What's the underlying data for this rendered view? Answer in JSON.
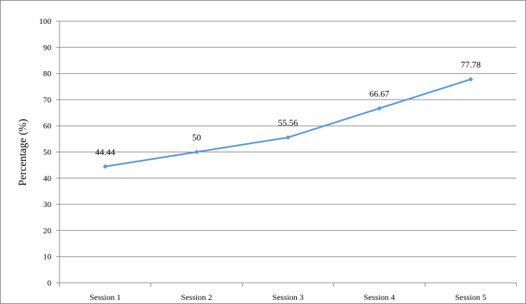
{
  "chart_data": {
    "type": "line",
    "title": "",
    "xlabel": "",
    "ylabel": "Percentage (%)",
    "categories": [
      "Session 1",
      "Session 2",
      "Session 3",
      "Session 4",
      "Session 5"
    ],
    "series": [
      {
        "values": [
          44.44,
          50,
          55.56,
          66.67,
          77.78
        ],
        "data_labels": [
          "44.44",
          "50",
          "55.56",
          "66.67",
          "77.78"
        ],
        "color": "#5b9bd5"
      }
    ],
    "ylim": [
      0,
      100
    ],
    "yticks": [
      0,
      10,
      20,
      30,
      40,
      50,
      60,
      70,
      80,
      90,
      100
    ],
    "ytick_labels": [
      "0",
      "10",
      "20",
      "30",
      "40",
      "50",
      "60",
      "70",
      "80",
      "90",
      "100"
    ],
    "grid": true,
    "legend": "none",
    "colors": {
      "line": "#5b9bd5",
      "grid": "#868686",
      "axis": "#868686",
      "frame": "#7f7f7f"
    }
  }
}
